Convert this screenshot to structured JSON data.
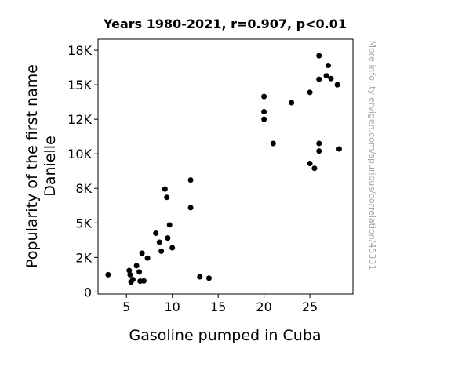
{
  "chart_data": {
    "type": "scatter",
    "title": "Years 1980-2021, r=0.907, p<0.01",
    "xlabel": "Gasoline pumped in Cuba",
    "ylabel_lines": [
      "Popularity of the first name",
      "Danielle"
    ],
    "xlim": [
      1.9,
      29.7
    ],
    "ylim": [
      -150,
      18300
    ],
    "xticks": [
      {
        "value": 5,
        "label": "5"
      },
      {
        "value": 10,
        "label": "10"
      },
      {
        "value": 15,
        "label": "15"
      },
      {
        "value": 20,
        "label": "20"
      },
      {
        "value": 25,
        "label": "25"
      }
    ],
    "yticks": [
      {
        "value": 0,
        "label": "0"
      },
      {
        "value": 2500,
        "label": "2K"
      },
      {
        "value": 5000,
        "label": "5K"
      },
      {
        "value": 7500,
        "label": "8K"
      },
      {
        "value": 10000,
        "label": "10K"
      },
      {
        "value": 12500,
        "label": "12K"
      },
      {
        "value": 15000,
        "label": "15K"
      },
      {
        "value": 17500,
        "label": "18K"
      }
    ],
    "marker_color": "#000000",
    "points": [
      {
        "x": 3.0,
        "y": 1250
      },
      {
        "x": 5.3,
        "y": 1550
      },
      {
        "x": 5.4,
        "y": 1250
      },
      {
        "x": 5.5,
        "y": 720
      },
      {
        "x": 5.7,
        "y": 900
      },
      {
        "x": 6.1,
        "y": 1900
      },
      {
        "x": 6.4,
        "y": 1450
      },
      {
        "x": 6.5,
        "y": 780
      },
      {
        "x": 6.7,
        "y": 2800
      },
      {
        "x": 6.9,
        "y": 800
      },
      {
        "x": 7.3,
        "y": 2450
      },
      {
        "x": 8.2,
        "y": 4250
      },
      {
        "x": 8.6,
        "y": 3600
      },
      {
        "x": 8.8,
        "y": 2950
      },
      {
        "x": 9.2,
        "y": 7450
      },
      {
        "x": 9.4,
        "y": 6850
      },
      {
        "x": 9.5,
        "y": 3900
      },
      {
        "x": 9.7,
        "y": 4850
      },
      {
        "x": 10.0,
        "y": 3200
      },
      {
        "x": 12.0,
        "y": 8100
      },
      {
        "x": 12.0,
        "y": 6100
      },
      {
        "x": 13.0,
        "y": 1100
      },
      {
        "x": 14.0,
        "y": 1000
      },
      {
        "x": 20.0,
        "y": 14150
      },
      {
        "x": 20.0,
        "y": 13050
      },
      {
        "x": 20.0,
        "y": 12500
      },
      {
        "x": 21.0,
        "y": 10750
      },
      {
        "x": 23.0,
        "y": 13700
      },
      {
        "x": 25.0,
        "y": 14450
      },
      {
        "x": 25.0,
        "y": 9300
      },
      {
        "x": 25.5,
        "y": 8950
      },
      {
        "x": 26.0,
        "y": 17100
      },
      {
        "x": 26.0,
        "y": 15400
      },
      {
        "x": 26.0,
        "y": 10750
      },
      {
        "x": 26.0,
        "y": 10200
      },
      {
        "x": 26.8,
        "y": 15650
      },
      {
        "x": 27.0,
        "y": 16400
      },
      {
        "x": 27.3,
        "y": 15450
      },
      {
        "x": 28.0,
        "y": 15000
      },
      {
        "x": 28.2,
        "y": 10350
      }
    ]
  },
  "watermark": "More info: tylervigen.com/spurious/correlation/45331"
}
